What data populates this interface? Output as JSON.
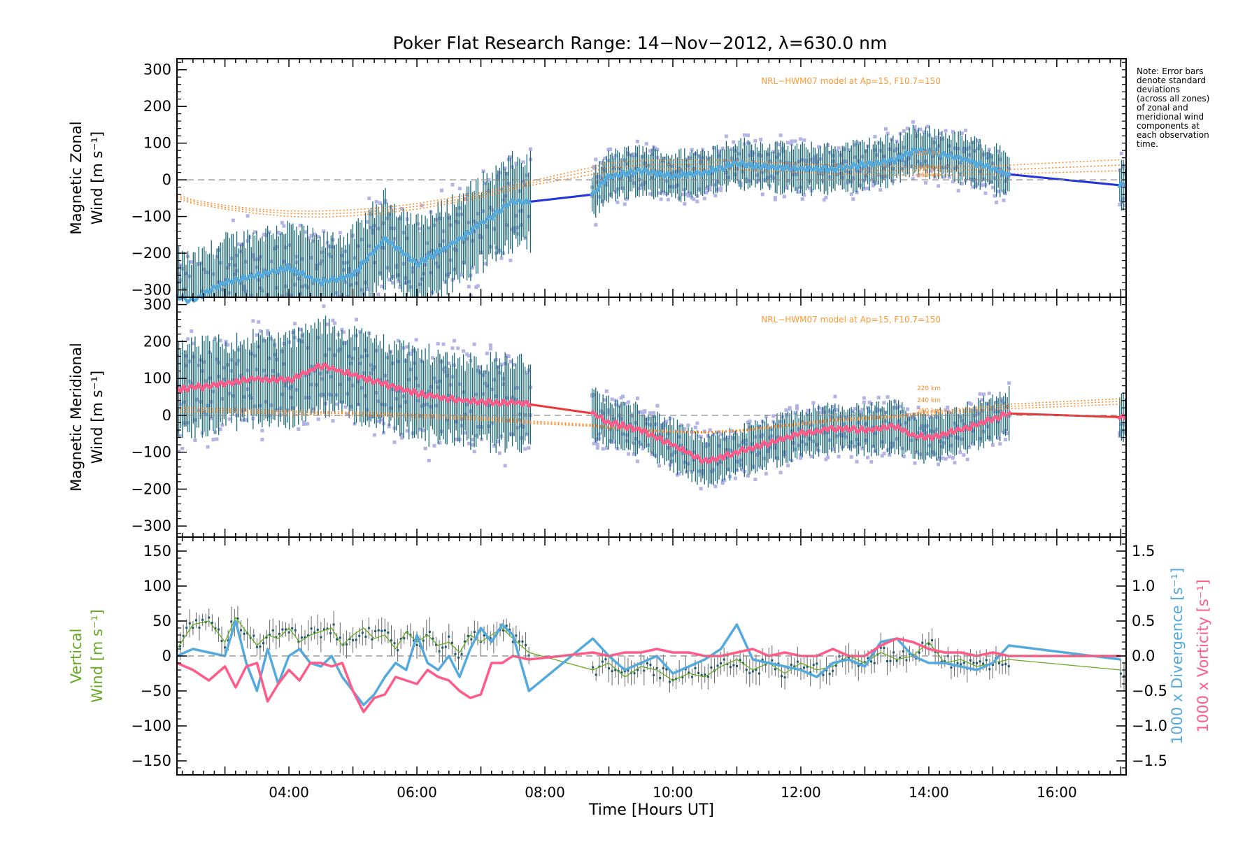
{
  "title": "Poker Flat Research Range: 14−Nov−2012, λ=630.0 nm",
  "note": [
    "Note: Error bars",
    "denote standard",
    "deviations",
    "(across all zones)",
    "of zonal and",
    "meridional wind",
    "components at",
    "each observation",
    "time."
  ],
  "colors": {
    "zonal_mean": "#55aadd",
    "zonal_interp": "#2233dd",
    "meridional_mean": "#ff5b88",
    "meridional_interp": "#ee3333",
    "vertical": "#66aa22",
    "divergence": "#55aadd",
    "vorticity": "#ff5b88",
    "model": "#ff8822",
    "model_label": "#ff9933",
    "errbar": "#1a6a78",
    "scatter": "#b3b3e6"
  },
  "xaxis": {
    "label": "Time [Hours UT]",
    "range": [
      "02:15",
      "17:05"
    ],
    "ticks": [
      "04:00",
      "06:00",
      "08:00",
      "10:00",
      "12:00",
      "14:00",
      "16:00"
    ]
  },
  "chart_data": [
    {
      "type": "line",
      "panel": "zonal",
      "ylabel_line1": "Magnetic Zonal",
      "ylabel_line2": "Wind [m s⁻¹]",
      "ylim": [
        -320,
        330
      ],
      "yticks": [
        "300",
        "200",
        "100",
        "0",
        "−100",
        "−200",
        "−300"
      ],
      "model_label": "NRL−HWM07 model at Ap=15, F10.7=150",
      "model_heights": [
        "220 km",
        "240 km",
        "260 km"
      ],
      "x": [
        "02:15",
        "02:30",
        "03:00",
        "03:30",
        "04:00",
        "04:30",
        "05:00",
        "05:30",
        "06:00",
        "06:30",
        "07:00",
        "07:30",
        "07:45",
        "08:45",
        "09:00",
        "09:30",
        "10:00",
        "10:30",
        "11:00",
        "11:30",
        "12:00",
        "12:30",
        "13:00",
        "13:30",
        "13:45",
        "14:00",
        "14:30",
        "15:00",
        "15:15",
        "17:00"
      ],
      "series": [
        {
          "role": "mean",
          "values": [
            -320,
            -330,
            -280,
            -260,
            -240,
            -280,
            -260,
            -160,
            -230,
            -180,
            -120,
            -60,
            -60,
            -40,
            10,
            25,
            10,
            20,
            45,
            35,
            30,
            30,
            40,
            55,
            80,
            75,
            60,
            30,
            15,
            -15
          ]
        },
        {
          "role": "model-220",
          "values": [
            -40,
            -55,
            -70,
            -80,
            -85,
            -85,
            -82,
            -75,
            -65,
            -50,
            -35,
            -15,
            -5,
            35,
            45,
            52,
            55,
            55,
            52,
            48,
            44,
            40,
            38,
            36,
            36,
            36,
            37,
            38,
            40,
            55
          ]
        },
        {
          "role": "model-240",
          "values": [
            -45,
            -60,
            -75,
            -85,
            -92,
            -93,
            -90,
            -83,
            -72,
            -58,
            -42,
            -22,
            -10,
            25,
            33,
            40,
            42,
            42,
            40,
            36,
            32,
            28,
            26,
            25,
            25,
            25,
            26,
            27,
            28,
            40
          ]
        },
        {
          "role": "model-260",
          "values": [
            -50,
            -65,
            -80,
            -92,
            -100,
            -102,
            -98,
            -90,
            -80,
            -65,
            -48,
            -28,
            -16,
            15,
            22,
            28,
            30,
            30,
            28,
            24,
            20,
            16,
            14,
            13,
            13,
            13,
            14,
            15,
            16,
            25
          ]
        }
      ]
    },
    {
      "type": "line",
      "panel": "meridional",
      "ylabel_line1": "Magnetic Meridional",
      "ylabel_line2": "Wind [m s⁻¹]",
      "ylim": [
        -330,
        320
      ],
      "yticks": [
        "300",
        "200",
        "100",
        "0",
        "−100",
        "−200",
        "−300"
      ],
      "model_label": "NRL−HWM07 model at Ap=15, F10.7=150",
      "model_heights": [
        "220 km",
        "240 km",
        "260 km"
      ],
      "x": [
        "02:15",
        "02:30",
        "03:00",
        "03:30",
        "04:00",
        "04:30",
        "05:00",
        "05:30",
        "06:00",
        "06:30",
        "07:00",
        "07:30",
        "07:45",
        "08:45",
        "09:00",
        "09:30",
        "10:00",
        "10:30",
        "11:00",
        "11:30",
        "12:00",
        "12:30",
        "13:00",
        "13:30",
        "13:45",
        "14:00",
        "14:30",
        "15:00",
        "15:15",
        "17:00"
      ],
      "series": [
        {
          "role": "mean",
          "values": [
            70,
            75,
            85,
            100,
            95,
            135,
            110,
            85,
            60,
            45,
            35,
            35,
            30,
            5,
            -20,
            -40,
            -80,
            -125,
            -100,
            -75,
            -50,
            -35,
            -40,
            -30,
            -55,
            -60,
            -40,
            -10,
            5,
            -5
          ]
        },
        {
          "role": "model-220",
          "values": [
            20,
            20,
            18,
            15,
            12,
            10,
            8,
            6,
            3,
            0,
            -5,
            -10,
            -15,
            -25,
            -30,
            -38,
            -42,
            -44,
            -40,
            -30,
            -20,
            -10,
            -5,
            0,
            5,
            10,
            18,
            26,
            30,
            45
          ]
        },
        {
          "role": "model-240",
          "values": [
            15,
            15,
            13,
            10,
            8,
            6,
            4,
            2,
            -1,
            -4,
            -9,
            -14,
            -19,
            -28,
            -33,
            -40,
            -44,
            -46,
            -42,
            -33,
            -23,
            -13,
            -8,
            -3,
            2,
            6,
            13,
            20,
            24,
            38
          ]
        },
        {
          "role": "model-260",
          "values": [
            10,
            10,
            8,
            5,
            3,
            1,
            -1,
            -3,
            -6,
            -9,
            -13,
            -18,
            -22,
            -30,
            -35,
            -42,
            -46,
            -48,
            -44,
            -35,
            -26,
            -16,
            -11,
            -6,
            -2,
            2,
            8,
            14,
            18,
            30
          ]
        }
      ]
    },
    {
      "type": "line",
      "panel": "vertical",
      "ylabel_line1": "Vertical",
      "ylabel_line2": "Wind [m s⁻¹]",
      "ylim": [
        -170,
        170
      ],
      "yticks": [
        "150",
        "100",
        "50",
        "0",
        "−50",
        "−100",
        "−150"
      ],
      "y2label_div": "1000 x Divergence [s⁻¹]",
      "y2label_vort": "1000 x Vorticity [s⁻¹]",
      "y2lim": [
        -1.7,
        1.7
      ],
      "y2ticks": [
        "1.5",
        "1.0",
        "0.5",
        "0.0",
        "−0.5",
        "−1.0",
        "−1.5"
      ],
      "series": [
        {
          "name": "Vertical",
          "role": "vertical",
          "x": [
            "02:15",
            "02:30",
            "02:45",
            "03:00",
            "03:10",
            "03:20",
            "03:30",
            "03:40",
            "03:50",
            "04:00",
            "04:10",
            "04:20",
            "04:30",
            "04:40",
            "04:50",
            "05:00",
            "05:10",
            "05:20",
            "05:30",
            "05:40",
            "05:50",
            "06:00",
            "06:10",
            "06:20",
            "06:30",
            "06:40",
            "06:50",
            "07:00",
            "07:10",
            "07:20",
            "07:30",
            "07:45",
            "08:45",
            "09:00",
            "09:15",
            "09:30",
            "09:45",
            "10:00",
            "10:15",
            "10:30",
            "10:45",
            "11:00",
            "11:15",
            "11:30",
            "11:45",
            "12:00",
            "12:15",
            "12:30",
            "12:45",
            "13:00",
            "13:15",
            "13:30",
            "13:45",
            "14:00",
            "14:15",
            "14:30",
            "14:45",
            "15:00",
            "15:15",
            "17:00"
          ],
          "values": [
            10,
            45,
            50,
            20,
            55,
            35,
            15,
            30,
            25,
            40,
            20,
            30,
            35,
            40,
            15,
            30,
            40,
            25,
            30,
            10,
            35,
            20,
            30,
            15,
            20,
            5,
            30,
            20,
            30,
            40,
            25,
            5,
            -20,
            -10,
            -30,
            -15,
            -20,
            -35,
            -25,
            -30,
            -15,
            -5,
            -20,
            -10,
            -25,
            -10,
            -20,
            -15,
            0,
            -10,
            5,
            -5,
            0,
            20,
            -10,
            -5,
            -15,
            -10,
            -5,
            -20
          ]
        },
        {
          "name": "1000 x Divergence",
          "role": "divergence",
          "x": [
            "02:15",
            "02:30",
            "02:45",
            "03:00",
            "03:10",
            "03:20",
            "03:30",
            "03:40",
            "03:50",
            "04:00",
            "04:10",
            "04:20",
            "04:30",
            "04:40",
            "04:50",
            "05:00",
            "05:10",
            "05:20",
            "05:30",
            "05:40",
            "05:50",
            "06:00",
            "06:10",
            "06:20",
            "06:30",
            "06:40",
            "06:50",
            "07:00",
            "07:10",
            "07:20",
            "07:30",
            "07:45",
            "08:45",
            "09:00",
            "09:15",
            "09:30",
            "09:45",
            "10:00",
            "10:15",
            "10:30",
            "10:45",
            "11:00",
            "11:15",
            "11:30",
            "11:45",
            "12:00",
            "12:15",
            "12:30",
            "12:45",
            "13:00",
            "13:15",
            "13:30",
            "13:45",
            "14:00",
            "14:15",
            "14:30",
            "14:45",
            "15:00",
            "15:15",
            "17:00"
          ],
          "values": [
            0.0,
            0.1,
            0.05,
            0.0,
            0.5,
            -0.1,
            -0.5,
            0.1,
            -0.4,
            0.0,
            0.1,
            -0.1,
            -0.15,
            0.0,
            -0.3,
            -0.5,
            -0.7,
            -0.55,
            -0.3,
            -0.1,
            -0.2,
            0.3,
            -0.1,
            -0.2,
            0.0,
            -0.3,
            0.1,
            0.4,
            0.2,
            0.45,
            0.3,
            -0.5,
            0.25,
            0.0,
            -0.2,
            -0.1,
            0.0,
            -0.25,
            -0.15,
            -0.05,
            0.1,
            0.45,
            -0.05,
            -0.1,
            -0.15,
            -0.2,
            -0.3,
            -0.1,
            -0.05,
            -0.15,
            0.2,
            0.25,
            0.0,
            -0.1,
            -0.1,
            -0.15,
            -0.2,
            -0.1,
            0.15,
            -0.05
          ]
        },
        {
          "name": "1000 x Vorticity",
          "role": "vorticity",
          "x": [
            "02:15",
            "02:30",
            "02:45",
            "03:00",
            "03:10",
            "03:20",
            "03:30",
            "03:40",
            "03:50",
            "04:00",
            "04:10",
            "04:20",
            "04:30",
            "04:40",
            "04:50",
            "05:00",
            "05:10",
            "05:20",
            "05:30",
            "05:40",
            "05:50",
            "06:00",
            "06:10",
            "06:20",
            "06:30",
            "06:40",
            "06:50",
            "07:00",
            "07:10",
            "07:20",
            "07:30",
            "07:45",
            "08:45",
            "09:00",
            "09:15",
            "09:30",
            "09:45",
            "10:00",
            "10:15",
            "10:30",
            "10:45",
            "11:00",
            "11:15",
            "11:30",
            "11:45",
            "12:00",
            "12:15",
            "12:30",
            "12:45",
            "13:00",
            "13:15",
            "13:30",
            "13:45",
            "14:00",
            "14:15",
            "14:30",
            "14:45",
            "15:00",
            "15:15",
            "17:00"
          ],
          "values": [
            -0.1,
            -0.2,
            -0.35,
            -0.15,
            -0.45,
            -0.15,
            -0.1,
            -0.65,
            -0.4,
            -0.2,
            -0.35,
            -0.1,
            -0.1,
            -0.15,
            -0.1,
            -0.5,
            -0.8,
            -0.6,
            -0.55,
            -0.3,
            -0.35,
            -0.4,
            -0.2,
            -0.3,
            -0.35,
            -0.5,
            -0.6,
            -0.55,
            -0.1,
            -0.1,
            0.0,
            -0.05,
            0.05,
            0.0,
            0.05,
            0.05,
            0.1,
            0.05,
            0.05,
            0.0,
            0.0,
            0.05,
            0.1,
            0.0,
            0.05,
            0.0,
            0.0,
            0.1,
            0.0,
            0.0,
            0.15,
            0.25,
            0.2,
            0.1,
            0.05,
            0.05,
            0.0,
            0.05,
            0.0,
            0.0
          ]
        }
      ]
    }
  ]
}
